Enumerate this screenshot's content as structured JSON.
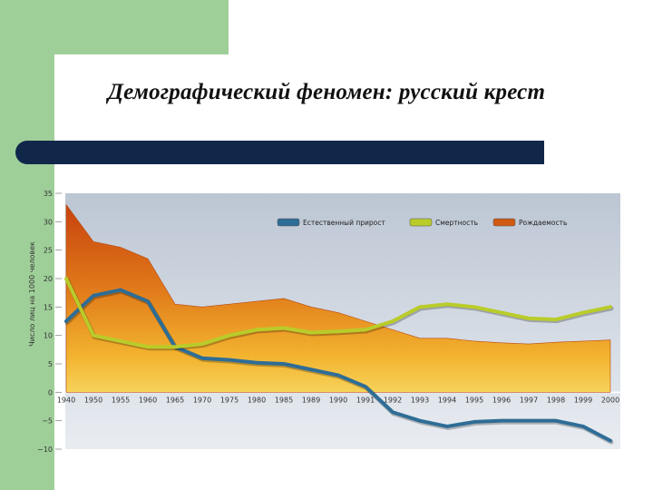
{
  "slide": {
    "title": "Демографический феномен: русский крест"
  },
  "chart_data": {
    "type": "area",
    "ylabel": "Число лиц на 1000 человек",
    "ylim": [
      -10,
      35
    ],
    "yticks": [
      35,
      30,
      25,
      20,
      15,
      10,
      5,
      0,
      -5,
      -10
    ],
    "categories": [
      "1940",
      "1950",
      "1955",
      "1960",
      "1965",
      "1970",
      "1975",
      "1980",
      "1985",
      "1989",
      "1990",
      "1991",
      "1992",
      "1993",
      "1994",
      "1995",
      "1996",
      "1997",
      "1998",
      "1999",
      "2000"
    ],
    "legend_position": "top-right",
    "series": [
      {
        "name": "Естественный прирост",
        "kind": "line",
        "color": "#2e6d96",
        "values": [
          12.5,
          17,
          18,
          16,
          8,
          6,
          5.7,
          5.2,
          5,
          4,
          3,
          1,
          -3.5,
          -5,
          -6,
          -5.2,
          -5,
          -5,
          -5,
          -6,
          -8.5
        ]
      },
      {
        "name": "Смертность",
        "kind": "line",
        "color": "#b9cc2a",
        "values": [
          20,
          10,
          9,
          8,
          8,
          8.5,
          10,
          11,
          11.3,
          10.5,
          10.7,
          11,
          12.5,
          15,
          15.5,
          15,
          14,
          13,
          12.8,
          14,
          15
        ]
      },
      {
        "name": "Рождаемость",
        "kind": "area",
        "color": "#cf5a12",
        "values": [
          33,
          26.5,
          25.5,
          23.5,
          15.5,
          15,
          15.5,
          16,
          16.5,
          15,
          14,
          12.5,
          11,
          9.5,
          9.5,
          9,
          8.7,
          8.5,
          8.8,
          9,
          9.2
        ]
      }
    ]
  }
}
